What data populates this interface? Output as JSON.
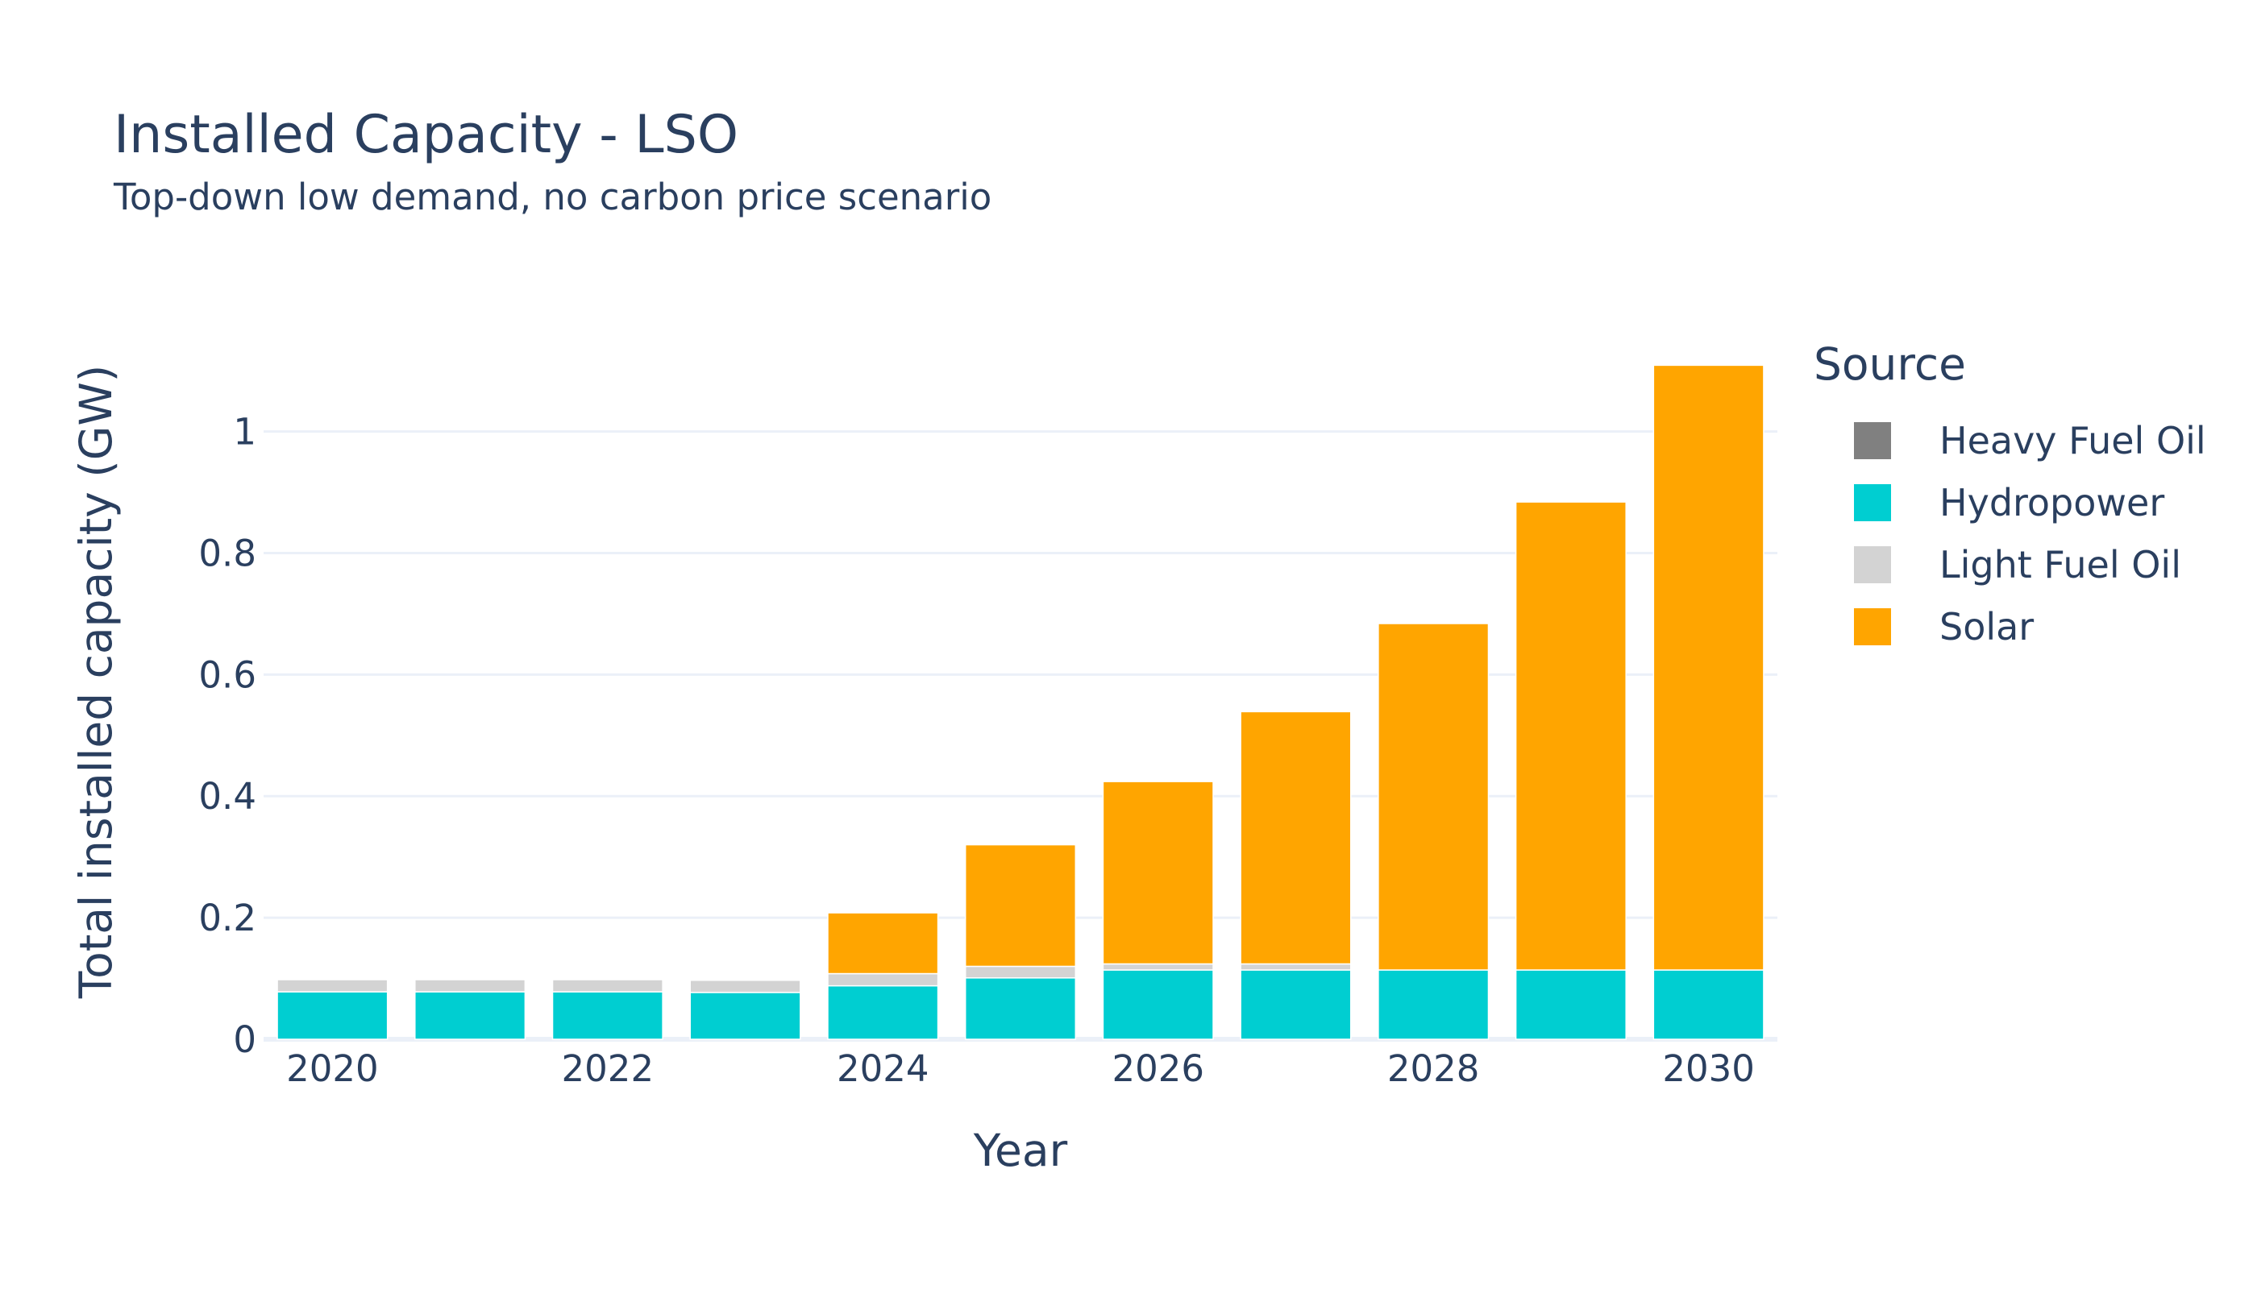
{
  "chart_data": {
    "type": "bar",
    "stacked": true,
    "title": "Installed Capacity - LSO",
    "subtitle": "Top-down low demand, no carbon price scenario",
    "xlabel": "Year",
    "ylabel": "Total installed capacity (GW)",
    "legend_title": "Source",
    "legend_position": "right",
    "grid": true,
    "x": [
      2020,
      2021,
      2022,
      2023,
      2024,
      2025,
      2026,
      2027,
      2028,
      2029,
      2030
    ],
    "x_ticks": [
      "2020",
      "2022",
      "2024",
      "2026",
      "2028",
      "2030"
    ],
    "y_ticks": [
      "0",
      "0.2",
      "0.4",
      "0.6",
      "0.8",
      "1"
    ],
    "ylim": [
      0,
      1.14
    ],
    "series": [
      {
        "name": "Heavy Fuel Oil",
        "color": "#808080",
        "values": [
          0,
          0,
          0,
          0,
          0,
          0,
          0,
          0,
          0,
          0,
          0
        ]
      },
      {
        "name": "Hydropower",
        "color": "#00CED1",
        "values": [
          0.078,
          0.078,
          0.078,
          0.077,
          0.088,
          0.101,
          0.114,
          0.114,
          0.114,
          0.114,
          0.114
        ]
      },
      {
        "name": "Light Fuel Oil",
        "color": "#D3D3D3",
        "values": [
          0.02,
          0.02,
          0.02,
          0.02,
          0.02,
          0.019,
          0.01,
          0.01,
          0,
          0,
          0
        ]
      },
      {
        "name": "Solar",
        "color": "#FFA500",
        "values": [
          0,
          0,
          0,
          0,
          0.1,
          0.2,
          0.3,
          0.415,
          0.57,
          0.77,
          0.995
        ]
      }
    ]
  }
}
